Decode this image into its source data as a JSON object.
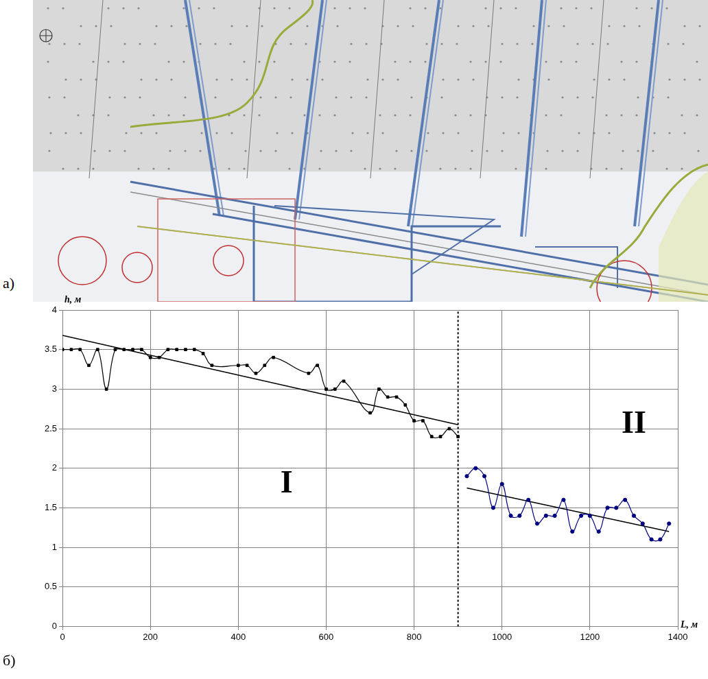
{
  "map_panel": {
    "label": "а)"
  },
  "chart_data": {
    "type": "line",
    "label": "б)",
    "x_label": "L, м",
    "y_label": "h, м",
    "xlim": [
      0,
      1400
    ],
    "xticks": [
      0,
      200,
      400,
      600,
      800,
      1000,
      1200,
      1400
    ],
    "ylim": [
      0,
      4
    ],
    "yticks": [
      0,
      0.5,
      1,
      1.5,
      2,
      2.5,
      3,
      3.5,
      4
    ],
    "grid": true,
    "series": [
      {
        "name": "I",
        "color": "#000000",
        "marker": "square",
        "label_x": 510,
        "label_y": 1.8,
        "x": [
          0,
          20,
          40,
          60,
          80,
          100,
          120,
          140,
          160,
          180,
          200,
          220,
          240,
          260,
          280,
          300,
          320,
          340,
          400,
          420,
          440,
          460,
          480,
          560,
          580,
          600,
          620,
          640,
          700,
          720,
          740,
          760,
          780,
          800,
          820,
          840,
          860,
          880,
          900
        ],
        "values": [
          3.5,
          3.5,
          3.5,
          3.3,
          3.5,
          3.0,
          3.5,
          3.5,
          3.5,
          3.5,
          3.4,
          3.4,
          3.5,
          3.5,
          3.5,
          3.5,
          3.45,
          3.3,
          3.3,
          3.3,
          3.2,
          3.3,
          3.4,
          3.2,
          3.3,
          3.0,
          3.0,
          3.1,
          2.7,
          3.0,
          2.9,
          2.9,
          2.8,
          2.6,
          2.6,
          2.4,
          2.4,
          2.5,
          2.4
        ]
      },
      {
        "name": "II",
        "color": "#000080",
        "marker": "circle",
        "label_x": 1300,
        "label_y": 2.55,
        "x": [
          920,
          940,
          960,
          980,
          1000,
          1020,
          1040,
          1060,
          1080,
          1100,
          1120,
          1140,
          1160,
          1180,
          1200,
          1220,
          1240,
          1260,
          1280,
          1300,
          1320,
          1340,
          1360,
          1380
        ],
        "values": [
          1.9,
          2.0,
          1.9,
          1.5,
          1.8,
          1.4,
          1.4,
          1.6,
          1.3,
          1.4,
          1.4,
          1.6,
          1.2,
          1.4,
          1.4,
          1.2,
          1.5,
          1.5,
          1.6,
          1.4,
          1.3,
          1.1,
          1.1,
          1.3
        ]
      }
    ],
    "trend_lines": [
      {
        "color": "#000000",
        "x": [
          0,
          900
        ],
        "values": [
          3.68,
          2.55
        ]
      },
      {
        "color": "#000000",
        "x": [
          920,
          1380
        ],
        "values": [
          1.75,
          1.2
        ]
      }
    ],
    "vertical_line": {
      "x": 900,
      "color": "#000000",
      "line_style": "dotted"
    }
  }
}
